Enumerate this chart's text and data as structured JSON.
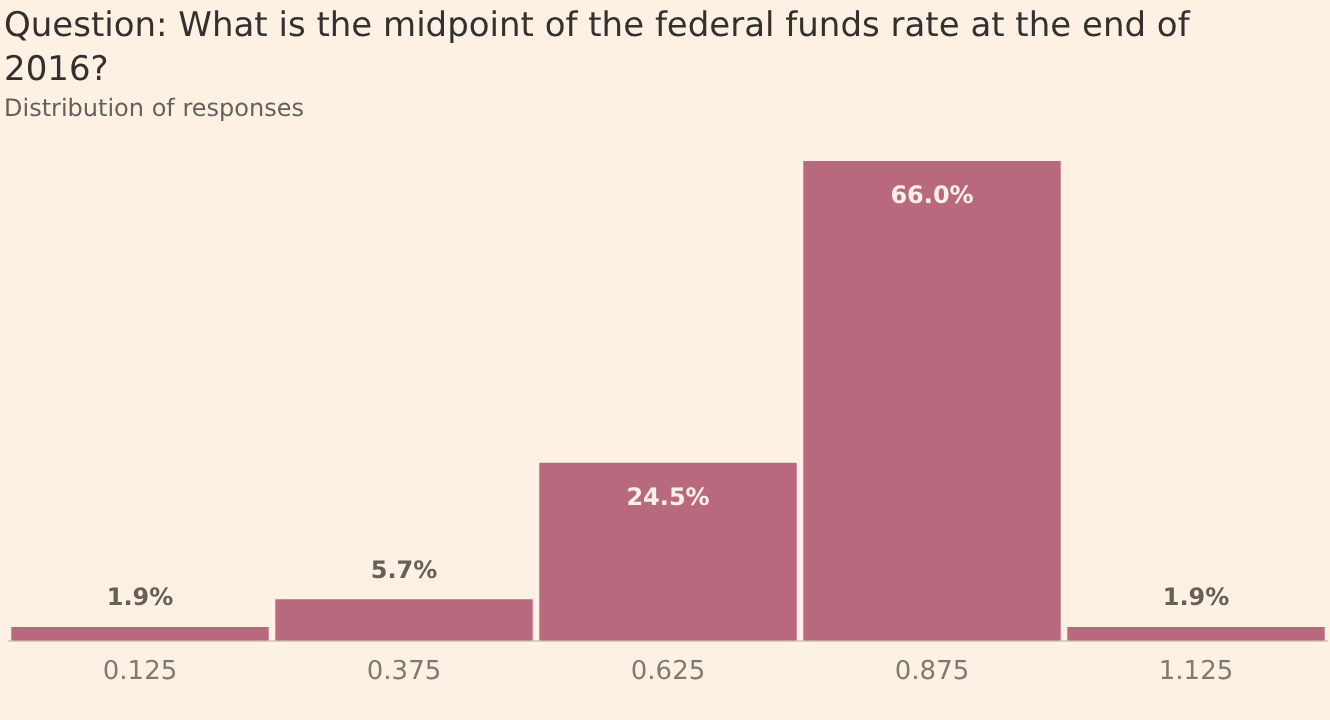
{
  "chart_data": {
    "type": "bar",
    "title": "Question: What is the midpoint of the federal funds rate at the end of 2016?",
    "subtitle": "Distribution of responses",
    "categories": [
      "0.125",
      "0.375",
      "0.625",
      "0.875",
      "1.125"
    ],
    "values": [
      1.9,
      5.7,
      24.5,
      66.0,
      1.9
    ],
    "value_labels": [
      "1.9%",
      "5.7%",
      "24.5%",
      "66.0%",
      "1.9%"
    ],
    "color": "#b8697e",
    "grid": false,
    "legend": false
  }
}
